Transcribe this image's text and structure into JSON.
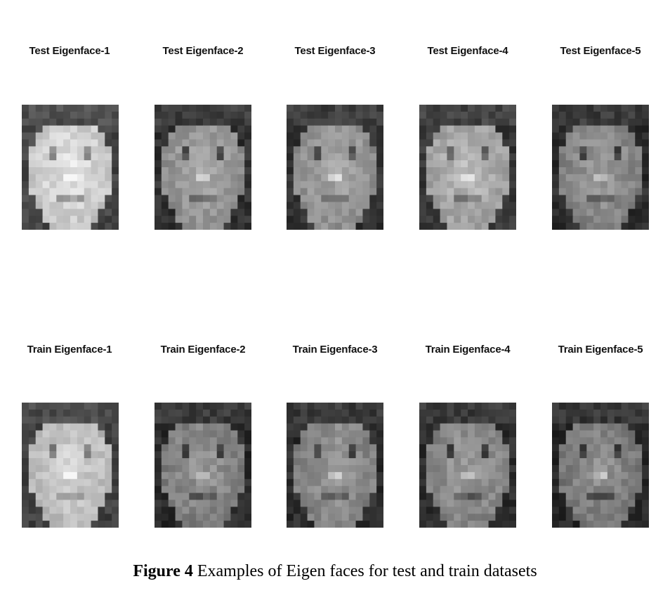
{
  "rows": [
    {
      "panels": [
        {
          "title": "Test Eigenface-1",
          "shade": 0.78
        },
        {
          "title": "Test Eigenface-2",
          "shade": 0.55
        },
        {
          "title": "Test Eigenface-3",
          "shade": 0.55
        },
        {
          "title": "Test Eigenface-4",
          "shade": 0.62
        },
        {
          "title": "Test Eigenface-5",
          "shade": 0.5
        }
      ]
    },
    {
      "panels": [
        {
          "title": "Train Eigenface-1",
          "shade": 0.72
        },
        {
          "title": "Train Eigenface-2",
          "shade": 0.48
        },
        {
          "title": "Train Eigenface-3",
          "shade": 0.5
        },
        {
          "title": "Train Eigenface-4",
          "shade": 0.5
        },
        {
          "title": "Train Eigenface-5",
          "shade": 0.46
        }
      ]
    }
  ],
  "caption": {
    "label": "Figure 4",
    "text": " Examples of Eigen faces for test and train datasets"
  }
}
